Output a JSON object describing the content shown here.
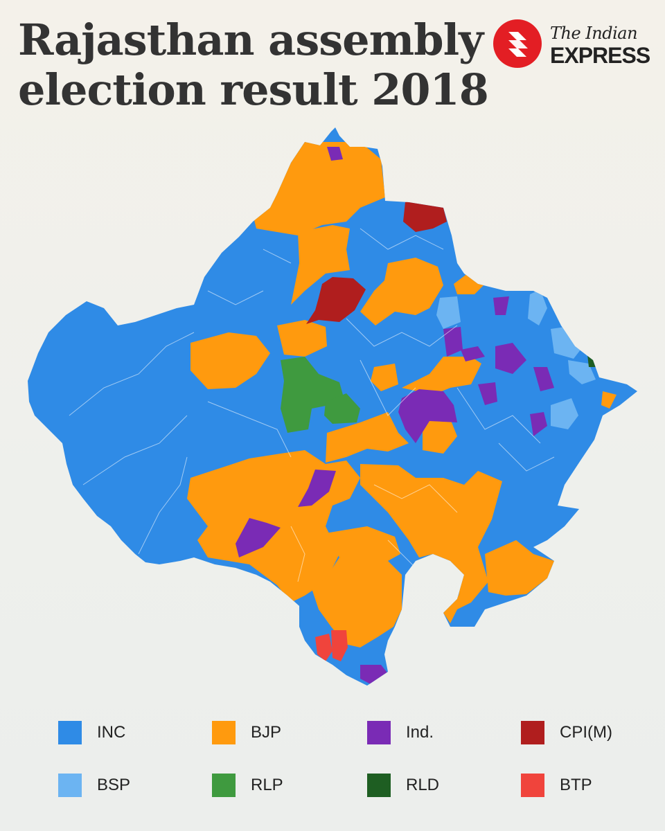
{
  "header": {
    "title_line1": "Rajasthan assembly",
    "title_line2": "election result 2018"
  },
  "brand": {
    "line1": "The Indian",
    "line2": "EXPRESS",
    "logo_icon": "indian-express-logo-icon",
    "logo_color": "#e31e24"
  },
  "map": {
    "subject": "Rajasthan assembly constituencies",
    "dominant_party": "INC",
    "region_colors": {
      "INC": "#2f8be6",
      "BJP": "#ff9a0e",
      "Ind.": "#7a2bb5",
      "CPI(M)": "#b01e1e",
      "BSP": "#6cb4f2",
      "RLP": "#3f9a3f",
      "RLD": "#1e5e22",
      "BTP": "#f0443c"
    }
  },
  "legend": {
    "items": [
      {
        "label": "INC",
        "color": "#2f8be6"
      },
      {
        "label": "BJP",
        "color": "#ff9a0e"
      },
      {
        "label": "Ind.",
        "color": "#7a2bb5"
      },
      {
        "label": "CPI(M)",
        "color": "#b01e1e"
      },
      {
        "label": "BSP",
        "color": "#6cb4f2"
      },
      {
        "label": "RLP",
        "color": "#3f9a3f"
      },
      {
        "label": "RLD",
        "color": "#1e5e22"
      },
      {
        "label": "BTP",
        "color": "#f0443c"
      }
    ]
  }
}
